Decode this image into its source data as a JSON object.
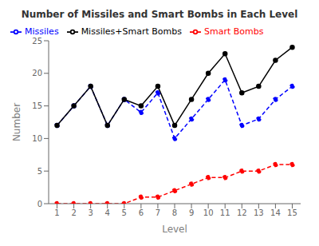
{
  "chart_data": {
    "type": "line",
    "title": "Number of Missiles and Smart Bombs in Each Level",
    "xlabel": "Level",
    "ylabel": "Number",
    "x": [
      1,
      2,
      3,
      4,
      5,
      6,
      7,
      8,
      9,
      10,
      11,
      12,
      13,
      14,
      15
    ],
    "series": [
      {
        "name": "Missiles",
        "color": "#0000ff",
        "line_style": "dashed",
        "marker": "circle",
        "values": [
          12,
          15,
          18,
          12,
          16,
          14,
          17,
          10,
          13,
          16,
          19,
          12,
          13,
          16,
          18
        ]
      },
      {
        "name": "Smart Bombs",
        "color": "#ff0000",
        "line_style": "dashed",
        "marker": "circle",
        "values": [
          0,
          0,
          0,
          0,
          0,
          1,
          1,
          2,
          3,
          4,
          4,
          5,
          5,
          6,
          6
        ]
      },
      {
        "name": "Missiles+Smart Bombs",
        "color": "#000000",
        "line_style": "solid",
        "marker": "circle",
        "values": [
          12,
          15,
          18,
          12,
          16,
          15,
          18,
          12,
          16,
          20,
          23,
          17,
          18,
          22,
          24
        ]
      }
    ],
    "xlim": [
      0.5,
      15.5
    ],
    "xticks": [
      1,
      2,
      3,
      4,
      5,
      6,
      7,
      8,
      9,
      10,
      11,
      12,
      13,
      14,
      15
    ],
    "ylim": [
      0,
      25
    ],
    "yticks": [
      0,
      5,
      10,
      15,
      20,
      25
    ],
    "grid": false,
    "legend": "upper left"
  }
}
